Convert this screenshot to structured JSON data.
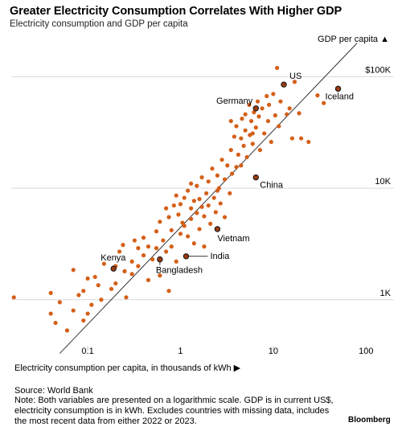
{
  "title": "Greater Electricity Consumption Correlates With Higher GDP",
  "subtitle": "Electricity consumption and GDP per capita",
  "xlabel": "Electricity consumption per capita, in thousands of kWh ▶",
  "ylabel": "GDP per capita ▲",
  "source": "Source: World Bank",
  "note": "Note: Both variables are presented on a logarithmic scale. GDP is in current US$, electricity consumption is in kWh. Excludes countries with missing data, includes the most recent data from either 2022 or 2023.",
  "brand": "Bloomberg",
  "colors": {
    "dot": "#d45f18",
    "dot_edge": "#a8430c",
    "highlight_fill": "#9a3b12",
    "trend": "#333333",
    "grid": "#d9d9d9"
  },
  "chart_data": {
    "type": "scatter",
    "x_scale": "log",
    "y_scale": "log",
    "xlim": [
      0.015,
      200
    ],
    "ylim": [
      350,
      180000
    ],
    "x_ticks": [
      {
        "value": 0.1,
        "label": "0.1"
      },
      {
        "value": 1,
        "label": "1"
      },
      {
        "value": 10,
        "label": "10"
      },
      {
        "value": 100,
        "label": "100"
      }
    ],
    "y_ticks": [
      {
        "value": 1000,
        "label": "1K"
      },
      {
        "value": 10000,
        "label": "10K"
      },
      {
        "value": 100000,
        "label": "$100K"
      }
    ],
    "grid": "horizontal",
    "trendline": [
      [
        0.05,
        330
      ],
      [
        80,
        200000
      ]
    ],
    "highlighted": [
      {
        "label": "US",
        "x": 13,
        "y": 85000
      },
      {
        "label": "Germany",
        "x": 6.5,
        "y": 52000
      },
      {
        "label": "Iceland",
        "x": 50,
        "y": 78000
      },
      {
        "label": "China",
        "x": 6.5,
        "y": 12500
      },
      {
        "label": "Vietnam",
        "x": 2.5,
        "y": 4300
      },
      {
        "label": "India",
        "x": 1.15,
        "y": 2450
      },
      {
        "label": "Kenya",
        "x": 0.19,
        "y": 1900
      },
      {
        "label": "Bangladesh",
        "x": 0.6,
        "y": 2300
      }
    ],
    "points": [
      [
        0.016,
        1050
      ],
      [
        0.04,
        750
      ],
      [
        0.04,
        1150
      ],
      [
        0.045,
        620
      ],
      [
        0.05,
        950
      ],
      [
        0.06,
        530
      ],
      [
        0.07,
        1850
      ],
      [
        0.07,
        800
      ],
      [
        0.08,
        1100
      ],
      [
        0.09,
        1200
      ],
      [
        0.09,
        650
      ],
      [
        0.1,
        1550
      ],
      [
        0.1,
        750
      ],
      [
        0.11,
        900
      ],
      [
        0.12,
        1600
      ],
      [
        0.13,
        1350
      ],
      [
        0.14,
        1000
      ],
      [
        0.15,
        2100
      ],
      [
        0.18,
        1250
      ],
      [
        0.2,
        2000
      ],
      [
        0.2,
        1400
      ],
      [
        0.22,
        2700
      ],
      [
        0.24,
        3100
      ],
      [
        0.25,
        1800
      ],
      [
        0.26,
        1050
      ],
      [
        0.3,
        1700
      ],
      [
        0.3,
        2200
      ],
      [
        0.32,
        3400
      ],
      [
        0.35,
        2000
      ],
      [
        0.35,
        2900
      ],
      [
        0.4,
        3600
      ],
      [
        0.4,
        2500
      ],
      [
        0.45,
        1500
      ],
      [
        0.45,
        3000
      ],
      [
        0.5,
        2300
      ],
      [
        0.55,
        4100
      ],
      [
        0.55,
        2900
      ],
      [
        0.6,
        5000
      ],
      [
        0.6,
        1650
      ],
      [
        0.65,
        3400
      ],
      [
        0.7,
        2700
      ],
      [
        0.7,
        6600
      ],
      [
        0.75,
        1200
      ],
      [
        0.75,
        5500
      ],
      [
        0.8,
        4200
      ],
      [
        0.8,
        3000
      ],
      [
        0.85,
        7000
      ],
      [
        0.9,
        2200
      ],
      [
        0.9,
        8600
      ],
      [
        0.95,
        5800
      ],
      [
        1.0,
        3900
      ],
      [
        1.0,
        7200
      ],
      [
        1.05,
        4900
      ],
      [
        1.1,
        8200
      ],
      [
        1.1,
        4600
      ],
      [
        1.2,
        9500
      ],
      [
        1.2,
        3700
      ],
      [
        1.3,
        5300
      ],
      [
        1.3,
        6600
      ],
      [
        1.4,
        7700
      ],
      [
        1.4,
        3200
      ],
      [
        1.5,
        6000
      ],
      [
        1.5,
        10500
      ],
      [
        1.6,
        4300
      ],
      [
        1.6,
        8000
      ],
      [
        1.7,
        12500
      ],
      [
        1.7,
        6800
      ],
      [
        1.8,
        5600
      ],
      [
        1.9,
        9000
      ],
      [
        2.0,
        7000
      ],
      [
        2.0,
        11500
      ],
      [
        2.1,
        4800
      ],
      [
        2.2,
        15000
      ],
      [
        2.3,
        8200
      ],
      [
        2.4,
        6100
      ],
      [
        2.5,
        13000
      ],
      [
        2.6,
        10000
      ],
      [
        2.7,
        7300
      ],
      [
        2.8,
        18000
      ],
      [
        3.0,
        12000
      ],
      [
        3.0,
        5500
      ],
      [
        3.2,
        16000
      ],
      [
        3.4,
        9000
      ],
      [
        3.5,
        22000
      ],
      [
        3.6,
        13500
      ],
      [
        3.8,
        29000
      ],
      [
        4.0,
        15500
      ],
      [
        4.0,
        36000
      ],
      [
        4.2,
        20000
      ],
      [
        4.5,
        28000
      ],
      [
        4.6,
        42000
      ],
      [
        4.8,
        24000
      ],
      [
        5.0,
        33000
      ],
      [
        5.0,
        46000
      ],
      [
        5.2,
        19000
      ],
      [
        5.5,
        56000
      ],
      [
        5.6,
        30000
      ],
      [
        5.8,
        40000
      ],
      [
        6.0,
        25000
      ],
      [
        6.2,
        48000
      ],
      [
        6.5,
        35000
      ],
      [
        6.8,
        60000
      ],
      [
        7.0,
        44000
      ],
      [
        7.2,
        22000
      ],
      [
        7.6,
        52000
      ],
      [
        8.0,
        31000
      ],
      [
        8.5,
        67000
      ],
      [
        8.8,
        40000
      ],
      [
        9.0,
        56000
      ],
      [
        9.5,
        26000
      ],
      [
        10.0,
        70000
      ],
      [
        10.5,
        45000
      ],
      [
        11.0,
        120000
      ],
      [
        11.5,
        36000
      ],
      [
        12.0,
        60000
      ],
      [
        14.0,
        46000
      ],
      [
        15.0,
        52000
      ],
      [
        16.0,
        28000
      ],
      [
        17.0,
        90000
      ],
      [
        19.0,
        47000
      ],
      [
        20.0,
        28000
      ],
      [
        24.0,
        26000
      ],
      [
        30.0,
        68000
      ],
      [
        35.0,
        58000
      ],
      [
        6.0,
        31000
      ],
      [
        4.5,
        16000
      ],
      [
        3.5,
        40000
      ],
      [
        2.5,
        9500
      ],
      [
        1.8,
        3000
      ],
      [
        1.3,
        11000
      ]
    ]
  }
}
